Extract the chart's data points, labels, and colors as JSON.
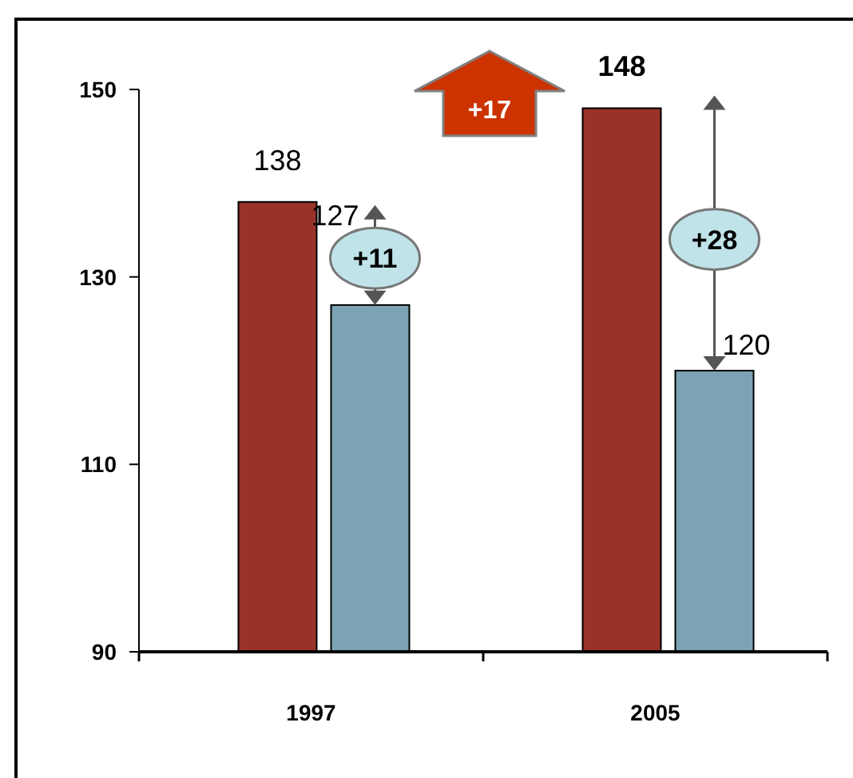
{
  "chart_data": {
    "type": "bar",
    "categories": [
      "1997",
      "2005"
    ],
    "series": [
      {
        "color": "#993329",
        "values": [
          138,
          148
        ]
      },
      {
        "color": "#7ba3b3",
        "values": [
          127,
          120
        ]
      }
    ],
    "ylim": [
      90,
      150
    ],
    "yticks": [
      90,
      110,
      130,
      150
    ],
    "data_labels": true,
    "annotations": [
      "+17",
      {
        "text": "+11",
        "x": "1997",
        "y": 132
      },
      {
        "text": "+28",
        "x": "2005",
        "y": 134
      }
    ]
  }
}
